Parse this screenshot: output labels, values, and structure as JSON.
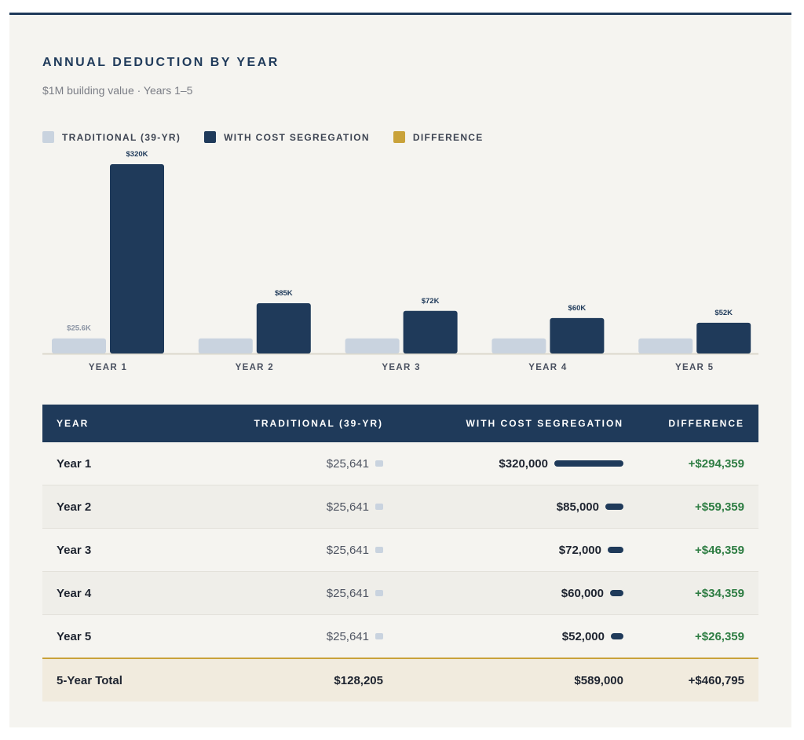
{
  "header": {
    "title": "ANNUAL DEDUCTION BY YEAR",
    "subtitle": "$1M building value · Years 1–5"
  },
  "legend": [
    {
      "label": "TRADITIONAL (39-YR)",
      "color": "#c9d3df"
    },
    {
      "label": "WITH COST SEGREGATION",
      "color": "#1f3a5a"
    },
    {
      "label": "DIFFERENCE",
      "color": "#c9a23a"
    }
  ],
  "chart_data": {
    "type": "bar",
    "title": "ANNUAL DEDUCTION BY YEAR",
    "categories": [
      "YEAR 1",
      "YEAR 2",
      "YEAR 3",
      "YEAR 4",
      "YEAR 5"
    ],
    "series": [
      {
        "name": "TRADITIONAL (39-YR)",
        "color": "#c9d3df",
        "values": [
          25641,
          25641,
          25641,
          25641,
          25641
        ],
        "labels": [
          "$25.6K",
          "",
          "",
          "",
          ""
        ]
      },
      {
        "name": "WITH COST SEGREGATION",
        "color": "#1f3a5a",
        "values": [
          320000,
          85000,
          72000,
          60000,
          52000
        ],
        "labels": [
          "$320K",
          "$85K",
          "$72K",
          "$60K",
          "$52K"
        ]
      }
    ],
    "ylim": [
      0,
      320000
    ],
    "grid": false,
    "legend": "top-left"
  },
  "table": {
    "headers": {
      "year": "YEAR",
      "traditional": "TRADITIONAL (39-YR)",
      "cost_seg": "WITH COST SEGREGATION",
      "difference": "DIFFERENCE"
    },
    "rows": [
      {
        "year": "Year 1",
        "traditional": "$25,641",
        "cost_seg": "$320,000",
        "cost_seg_value": 320000,
        "difference": "+$294,359"
      },
      {
        "year": "Year 2",
        "traditional": "$25,641",
        "cost_seg": "$85,000",
        "cost_seg_value": 85000,
        "difference": "+$59,359"
      },
      {
        "year": "Year 3",
        "traditional": "$25,641",
        "cost_seg": "$72,000",
        "cost_seg_value": 72000,
        "difference": "+$46,359"
      },
      {
        "year": "Year 4",
        "traditional": "$25,641",
        "cost_seg": "$60,000",
        "cost_seg_value": 60000,
        "difference": "+$34,359"
      },
      {
        "year": "Year 5",
        "traditional": "$25,641",
        "cost_seg": "$52,000",
        "cost_seg_value": 52000,
        "difference": "+$26,359"
      }
    ],
    "total": {
      "year": "5-Year Total",
      "traditional": "$128,205",
      "cost_seg": "$589,000",
      "difference": "+$460,795"
    }
  }
}
